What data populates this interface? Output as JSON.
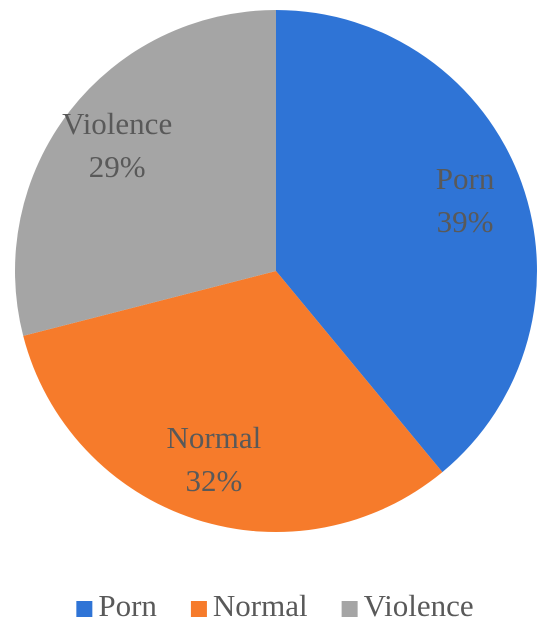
{
  "chart_data": {
    "type": "pie",
    "categories": [
      "Porn",
      "Normal",
      "Violence"
    ],
    "values": [
      39,
      32,
      29
    ],
    "value_labels": [
      "39%",
      "32%",
      "29%"
    ],
    "colors": [
      "#2f74d6",
      "#f67b2b",
      "#a5a5a5"
    ],
    "legend": "bottom"
  }
}
